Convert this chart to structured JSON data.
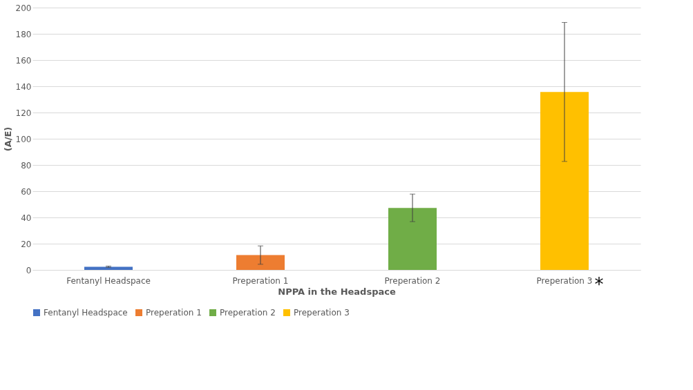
{
  "chart_data": {
    "type": "bar",
    "xlabel": "NPPA in the Headspace",
    "ylabel": "(A/E)",
    "categories": [
      "Fentanyl Headspace",
      "Preperation 1",
      "Preperation 2",
      "Preperation 3"
    ],
    "series": [
      {
        "name": "Fentanyl Headspace",
        "color": "#4472c4",
        "values": [
          2.4,
          null,
          null,
          null
        ],
        "errors": [
          0.5,
          null,
          null,
          null
        ]
      },
      {
        "name": "Preperation 1",
        "color": "#ed7d31",
        "values": [
          null,
          11.3,
          null,
          null
        ],
        "errors": [
          null,
          7,
          null,
          null
        ]
      },
      {
        "name": "Preperation 2",
        "color": "#70ad47",
        "values": [
          null,
          null,
          47.3,
          null
        ],
        "errors": [
          null,
          null,
          10.5,
          null
        ]
      },
      {
        "name": "Preperation 3",
        "color": "#ffc000",
        "values": [
          null,
          null,
          null,
          135.7
        ],
        "errors": [
          null,
          null,
          null,
          53
        ]
      }
    ],
    "ylim": [
      0,
      200
    ],
    "yticks": [
      0,
      20,
      40,
      60,
      80,
      100,
      120,
      140,
      160,
      180,
      200
    ],
    "grid": "y",
    "legend": "bottom",
    "annotations": [
      "*"
    ]
  }
}
